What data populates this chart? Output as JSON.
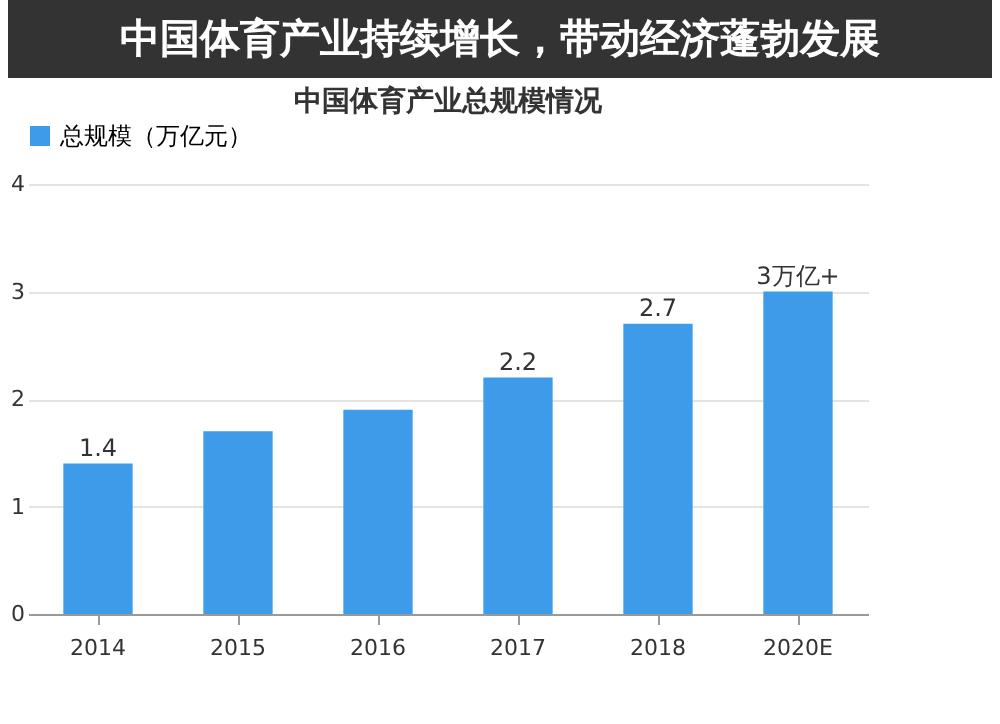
{
  "chart_data": {
    "type": "bar",
    "title": "中国体育产业总规模情况",
    "annotations": [
      "中国体育产业持续增长，带动经济蓬勃发展"
    ],
    "categories": [
      "2014",
      "2015",
      "2016",
      "2017",
      "2018",
      "2020E"
    ],
    "series": [
      {
        "name": "总规模（万亿元）",
        "color": "#3d9be9",
        "values": [
          1.4,
          1.7,
          1.9,
          2.2,
          2.7,
          3.0
        ],
        "value_labels": [
          "1.4",
          null,
          null,
          "2.2",
          "2.7",
          "3万亿+"
        ]
      }
    ],
    "ylim": [
      0,
      4
    ],
    "yticks": [
      0,
      1,
      2,
      3,
      4
    ],
    "grid": "y",
    "legend": "top"
  }
}
